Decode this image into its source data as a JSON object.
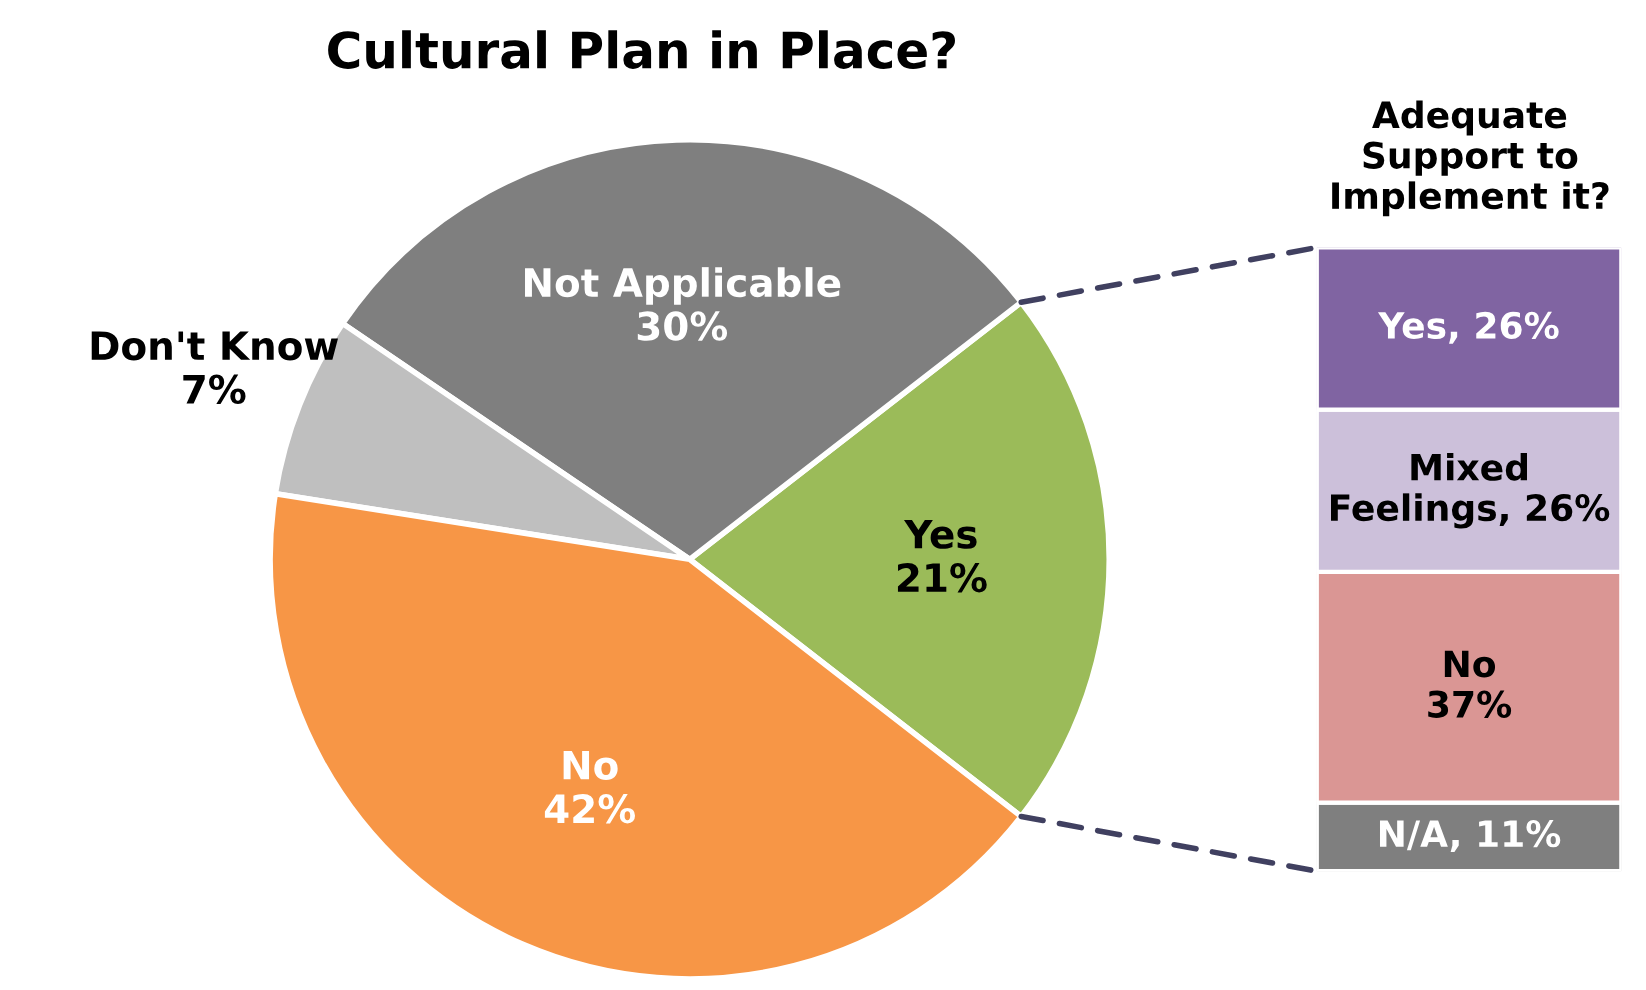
{
  "chart_data": [
    {
      "type": "pie",
      "title": "Cultural Plan in Place?",
      "categories": [
        "Yes",
        "Not Applicable",
        "Don't Know",
        "No"
      ],
      "values": [
        21,
        30,
        7,
        42
      ],
      "colors": [
        "#9bbb59",
        "#7f7f7f",
        "#bfbfbf",
        "#f79646"
      ],
      "value_labels": [
        "21%",
        "30%",
        "7%",
        "42%"
      ]
    },
    {
      "type": "bar",
      "title": "Adequate Support to Implement it?",
      "stacked": true,
      "categories": [
        null
      ],
      "legend": false,
      "series": [
        {
          "color": "#7f7f7f",
          "values": [
            11
          ],
          "value_labels": [
            "N/A, 11%"
          ]
        },
        {
          "color": "#da9694",
          "values": [
            37
          ],
          "value_labels": [
            "No\n37%"
          ]
        },
        {
          "color": "#ccc0da",
          "values": [
            26
          ],
          "value_labels": [
            "Mixed\nFeelings, 26%"
          ]
        },
        {
          "color": "#8064a2",
          "values": [
            26
          ],
          "value_labels": [
            "Yes, 26%"
          ]
        }
      ]
    }
  ]
}
